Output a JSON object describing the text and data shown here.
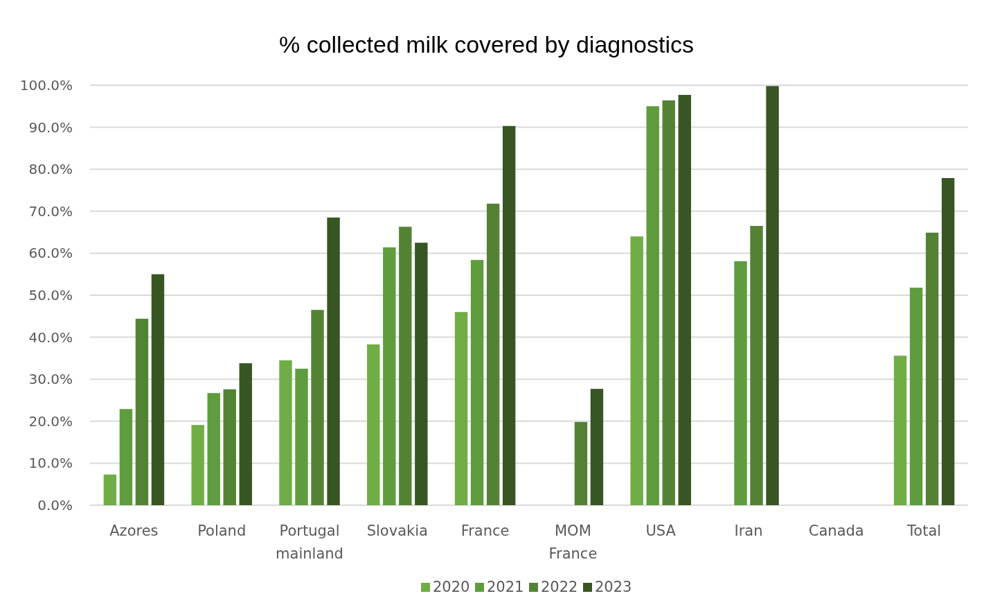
{
  "chart_data": {
    "type": "bar",
    "title": "% collected milk covered by diagnostics",
    "categories": [
      "Azores",
      "Poland",
      "Portugal mainland",
      "Slovakia",
      "France",
      "MOM France",
      "USA",
      "Iran",
      "Canada",
      "Total"
    ],
    "series": [
      {
        "name": "2020",
        "color": "#70ad47",
        "values": [
          7.3,
          19.1,
          34.5,
          38.3,
          46.0,
          null,
          64.0,
          null,
          null,
          35.6
        ]
      },
      {
        "name": "2021",
        "color": "#5f9c3d",
        "values": [
          22.9,
          26.7,
          32.5,
          61.4,
          58.4,
          null,
          95.0,
          58.1,
          null,
          51.8
        ]
      },
      {
        "name": "2022",
        "color": "#548235",
        "values": [
          44.4,
          27.6,
          46.5,
          66.3,
          71.8,
          19.8,
          96.4,
          66.5,
          null,
          64.9
        ]
      },
      {
        "name": "2023",
        "color": "#375623",
        "values": [
          55.0,
          33.8,
          68.5,
          62.5,
          90.3,
          27.7,
          97.7,
          99.8,
          null,
          77.9
        ]
      }
    ],
    "ylim": [
      0,
      100
    ],
    "yticks": [
      {
        "value": 0,
        "label": "0.0%"
      },
      {
        "value": 10,
        "label": "10.0%"
      },
      {
        "value": 20,
        "label": "20.0%"
      },
      {
        "value": 30,
        "label": "30.0%"
      },
      {
        "value": 40,
        "label": "40.0%"
      },
      {
        "value": 50,
        "label": "50.0%"
      },
      {
        "value": 60,
        "label": "60.0%"
      },
      {
        "value": 70,
        "label": "70.0%"
      },
      {
        "value": 80,
        "label": "80.0%"
      },
      {
        "value": 90,
        "label": "90.0%"
      },
      {
        "value": 100,
        "label": "100.0%"
      }
    ],
    "grid": "y",
    "legend": "bottom"
  }
}
